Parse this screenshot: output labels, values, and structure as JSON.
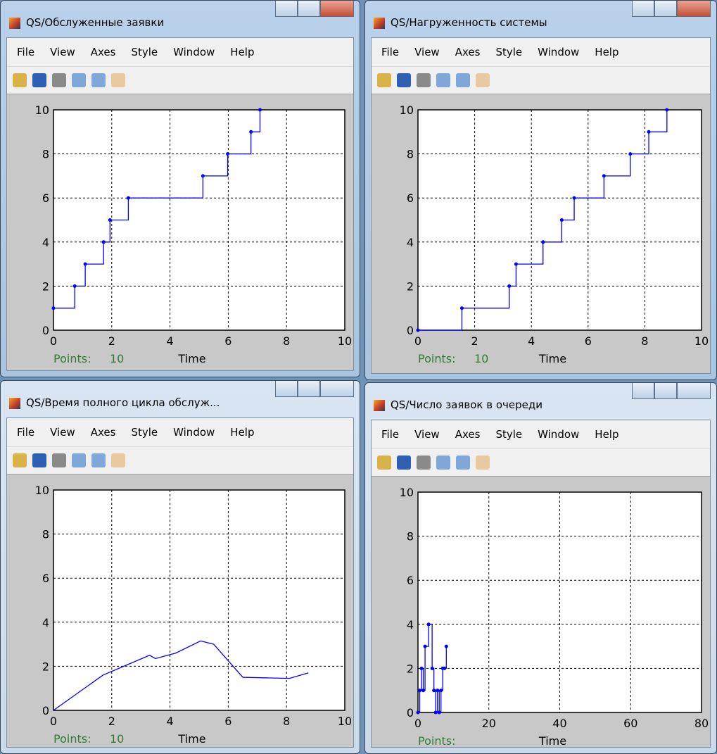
{
  "menu": [
    "File",
    "View",
    "Axes",
    "Style",
    "Window",
    "Help"
  ],
  "windows": [
    {
      "title": "QS/Обслуженные заявки",
      "points_label": "Points:",
      "points": 10
    },
    {
      "title": "QS/Нагруженность системы",
      "points_label": "Points:",
      "points": 10
    },
    {
      "title": "QS/Время полного цикла обслуж...",
      "points_label": "Points:",
      "points": 10
    },
    {
      "title": "QS/Число заявок в очереди",
      "points_label": "Points:"
    }
  ],
  "chart_data": [
    {
      "type": "stairs",
      "xlabel": "Time",
      "color": "#0000ff",
      "grid": true,
      "x": [
        0,
        0.73,
        1.09,
        1.72,
        1.94,
        2.57,
        5.13,
        5.98,
        6.78,
        7.09
      ],
      "values": [
        1,
        2,
        3,
        4,
        5,
        6,
        7,
        8,
        9,
        10
      ],
      "xlim": [
        0,
        10
      ],
      "xticks": [
        0,
        2,
        4,
        6,
        8,
        10
      ],
      "ylim": [
        0,
        10
      ],
      "yticks": [
        0,
        2,
        4,
        6,
        8,
        10
      ]
    },
    {
      "type": "stairs",
      "xlabel": "Time",
      "color": "#0000ff",
      "grid": true,
      "x": [
        0,
        1.55,
        3.22,
        3.46,
        4.41,
        5.07,
        5.51,
        6.56,
        7.49,
        8.14,
        8.78
      ],
      "values": [
        0,
        1,
        2,
        3,
        4,
        5,
        6,
        7,
        8,
        9,
        10
      ],
      "xlim": [
        0,
        10
      ],
      "xticks": [
        0,
        2,
        4,
        6,
        8,
        10
      ],
      "ylim": [
        0,
        10
      ],
      "yticks": [
        0,
        2,
        4,
        6,
        8,
        10
      ]
    },
    {
      "type": "line",
      "xlabel": "Time",
      "color": "#0000ff",
      "grid": true,
      "x": [
        0,
        1.7,
        3.3,
        3.5,
        4.2,
        5.05,
        5.5,
        6.5,
        8.1,
        8.75
      ],
      "values": [
        0,
        1.6,
        2.5,
        2.35,
        2.6,
        3.15,
        3.0,
        1.5,
        1.45,
        1.7
      ],
      "xlim": [
        0,
        10
      ],
      "xticks": [
        0,
        2,
        4,
        6,
        8,
        10
      ],
      "ylim": [
        0,
        10
      ],
      "yticks": [
        0,
        2,
        4,
        6,
        8,
        10
      ]
    },
    {
      "type": "stairs",
      "xlabel": "Time",
      "color": "#0000ff",
      "grid": true,
      "x": [
        0,
        0.5,
        1,
        1.5,
        2,
        3,
        4,
        4.5,
        5,
        5.5,
        6,
        6.5,
        7,
        7.5,
        8
      ],
      "values": [
        0,
        1,
        2,
        1,
        3,
        4,
        2,
        1,
        0,
        1,
        0,
        1,
        2,
        2,
        3
      ],
      "xlim": [
        0,
        80
      ],
      "xticks": [
        0,
        20,
        40,
        60,
        80
      ],
      "ylim": [
        0,
        10
      ],
      "yticks": [
        0,
        2,
        4,
        6,
        8,
        10
      ]
    }
  ]
}
